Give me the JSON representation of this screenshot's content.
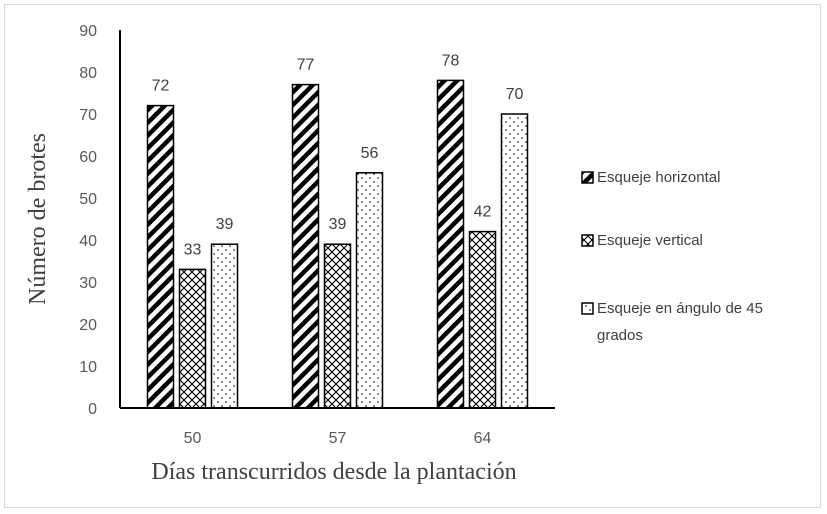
{
  "chart_data": {
    "type": "bar",
    "categories": [
      "50",
      "57",
      "64"
    ],
    "series": [
      {
        "name": "Esqueje horizontal",
        "values": [
          72,
          77,
          78
        ],
        "pattern": "diagonal-stripes"
      },
      {
        "name": "Esqueje vertical",
        "values": [
          33,
          39,
          42
        ],
        "pattern": "diamond-lattice"
      },
      {
        "name": "Esqueje en ángulo de 45 grados",
        "values": [
          39,
          56,
          70
        ],
        "pattern": "dots"
      }
    ],
    "title": "",
    "xlabel": "Días transcurridos desde la plantación",
    "ylabel": "Número de brotes",
    "ylim": [
      0,
      90
    ],
    "yticks": [
      "0",
      "10",
      "20",
      "30",
      "40",
      "50",
      "60",
      "70",
      "80",
      "90"
    ],
    "grid": false,
    "legend_position": "right",
    "colors": {
      "bar_outline": "#000000",
      "pattern": "#000000",
      "axis": "#000000",
      "text": "#404040",
      "frame": "#d9d9d9"
    }
  }
}
